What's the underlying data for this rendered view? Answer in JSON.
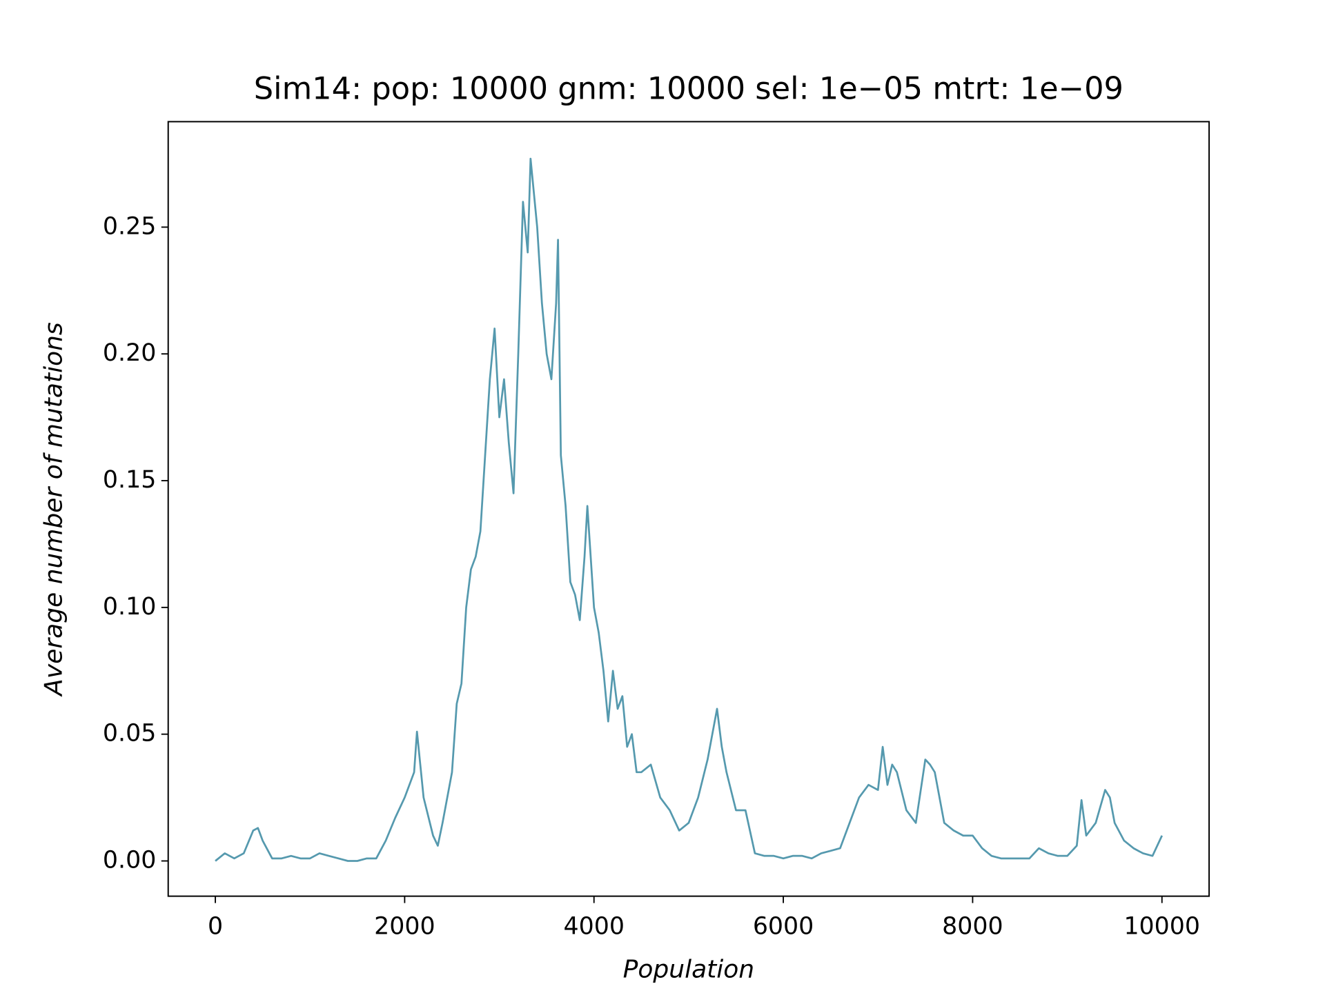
{
  "chart_data": {
    "type": "line",
    "title": "Sim14: pop: 10000 gnm: 10000 sel: 1e−05 mtrt: 1e−09",
    "x_label": "Population",
    "y_label": "Average number of mutations",
    "xlim": [
      -498,
      10498
    ],
    "ylim": [
      -0.0139,
      0.2916
    ],
    "xticks": [
      0,
      2000,
      4000,
      6000,
      8000,
      10000
    ],
    "yticks": [
      {
        "value": 0,
        "label": "0.00"
      },
      0.05,
      {
        "value": 0.1,
        "label": "0.10"
      },
      0.15,
      {
        "value": 0.2,
        "label": "0.20"
      },
      0.25
    ],
    "grid": false,
    "series": [
      {
        "color": "#5599ae",
        "x": [
          0,
          100,
          200,
          300,
          400,
          450,
          500,
          600,
          700,
          800,
          900,
          1000,
          1100,
          1200,
          1300,
          1400,
          1500,
          1600,
          1700,
          1800,
          1900,
          2000,
          2100,
          2130,
          2200,
          2300,
          2350,
          2400,
          2500,
          2550,
          2600,
          2650,
          2700,
          2750,
          2800,
          2850,
          2900,
          2950,
          3000,
          3050,
          3100,
          3150,
          3200,
          3250,
          3300,
          3330,
          3400,
          3450,
          3500,
          3550,
          3600,
          3620,
          3650,
          3700,
          3750,
          3800,
          3850,
          3900,
          3930,
          4000,
          4050,
          4100,
          4150,
          4200,
          4250,
          4300,
          4350,
          4400,
          4450,
          4500,
          4600,
          4700,
          4800,
          4900,
          5000,
          5100,
          5200,
          5300,
          5350,
          5400,
          5500,
          5600,
          5700,
          5800,
          5900,
          6000,
          6100,
          6200,
          6300,
          6400,
          6500,
          6600,
          6700,
          6800,
          6900,
          7000,
          7050,
          7100,
          7150,
          7200,
          7300,
          7400,
          7500,
          7550,
          7600,
          7700,
          7800,
          7900,
          8000,
          8100,
          8200,
          8300,
          8400,
          8500,
          8600,
          8700,
          8800,
          8900,
          9000,
          9100,
          9150,
          9200,
          9300,
          9400,
          9450,
          9500,
          9600,
          9700,
          9800,
          9900,
          10000
        ],
        "values": [
          0,
          0.003,
          0.001,
          0.003,
          0.012,
          0.013,
          0.008,
          0.001,
          0.001,
          0.002,
          0.001,
          0.001,
          0.003,
          0.002,
          0.001,
          0,
          0,
          0.001,
          0.001,
          0.008,
          0.017,
          0.025,
          0.035,
          0.051,
          0.025,
          0.01,
          0.006,
          0.015,
          0.035,
          0.062,
          0.07,
          0.1,
          0.115,
          0.12,
          0.13,
          0.16,
          0.19,
          0.21,
          0.175,
          0.19,
          0.165,
          0.145,
          0.2,
          0.26,
          0.24,
          0.277,
          0.25,
          0.22,
          0.2,
          0.19,
          0.22,
          0.245,
          0.16,
          0.14,
          0.11,
          0.105,
          0.095,
          0.12,
          0.14,
          0.1,
          0.09,
          0.075,
          0.055,
          0.075,
          0.06,
          0.065,
          0.045,
          0.05,
          0.035,
          0.035,
          0.038,
          0.025,
          0.02,
          0.012,
          0.015,
          0.025,
          0.04,
          0.06,
          0.045,
          0.035,
          0.02,
          0.02,
          0.003,
          0.002,
          0.002,
          0.001,
          0.002,
          0.002,
          0.001,
          0.003,
          0.004,
          0.005,
          0.015,
          0.025,
          0.03,
          0.028,
          0.045,
          0.03,
          0.038,
          0.035,
          0.02,
          0.015,
          0.04,
          0.038,
          0.035,
          0.015,
          0.012,
          0.01,
          0.01,
          0.005,
          0.002,
          0.001,
          0.001,
          0.001,
          0.001,
          0.005,
          0.003,
          0.002,
          0.002,
          0.006,
          0.024,
          0.01,
          0.015,
          0.028,
          0.025,
          0.015,
          0.008,
          0.005,
          0.003,
          0.002,
          0.01
        ]
      }
    ]
  }
}
